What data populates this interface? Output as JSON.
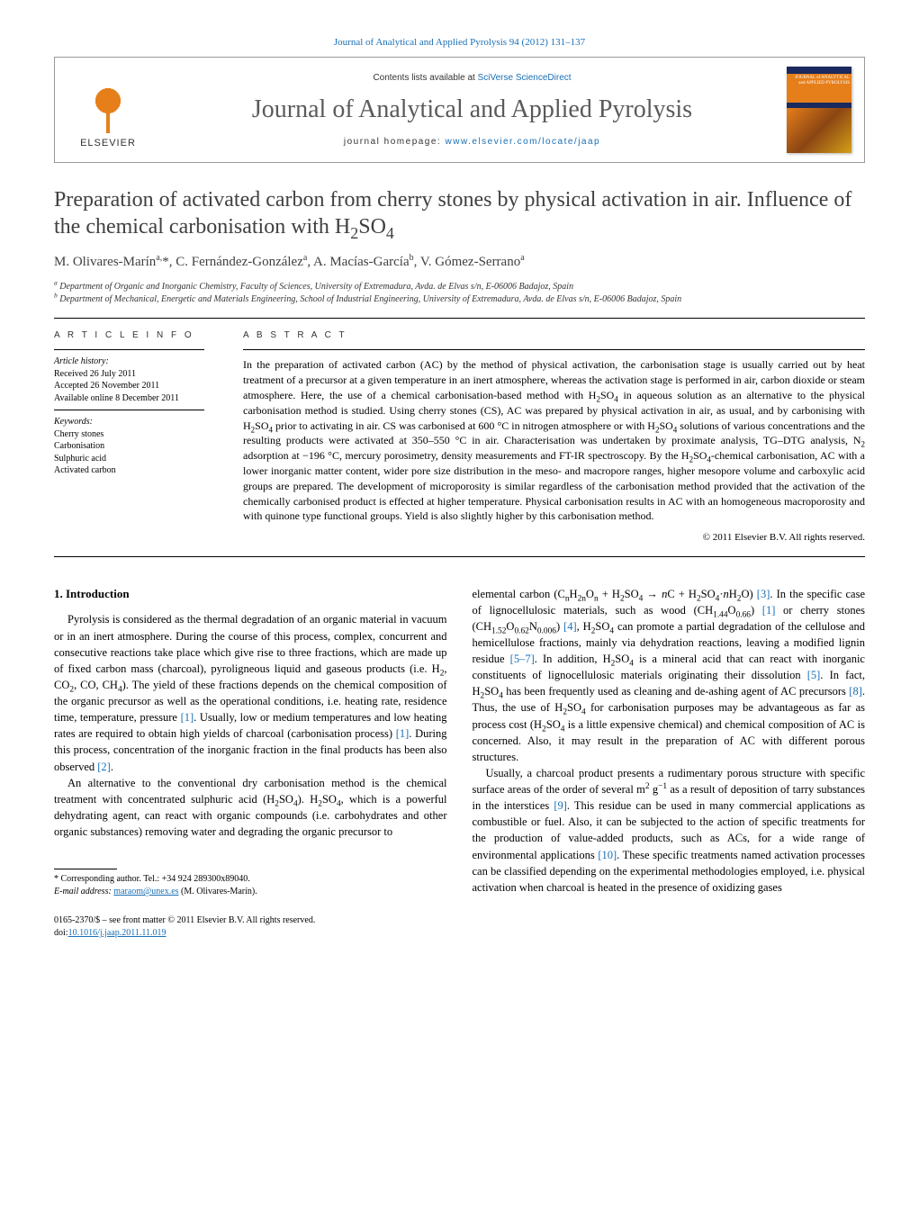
{
  "top_link": "Journal of Analytical and Applied Pyrolysis 94 (2012) 131–137",
  "header": {
    "publisher": "ELSEVIER",
    "contents_prefix": "Contents lists available at ",
    "contents_link": "SciVerse ScienceDirect",
    "journal_title": "Journal of Analytical and Applied Pyrolysis",
    "homepage_prefix": "journal homepage: ",
    "homepage_link": "www.elsevier.com/locate/jaap",
    "cover_label": "JOURNAL of ANALYTICAL and APPLIED PYROLYSIS"
  },
  "article": {
    "title_html": "Preparation of activated carbon from cherry stones by physical activation in air. Influence of the chemical carbonisation with H<sub>2</sub>SO<sub>4</sub>",
    "authors_html": "M. Olivares-Marín<sup>a,</sup>*, C. Fernández-González<sup>a</sup>, A. Macías-García<sup>b</sup>, V. Gómez-Serrano<sup>a</sup>",
    "affiliations": [
      "a Department of Organic and Inorganic Chemistry, Faculty of Sciences, University of Extremadura, Avda. de Elvas s/n, E-06006 Badajoz, Spain",
      "b Department of Mechanical, Energetic and Materials Engineering, School of Industrial Engineering, University of Extremadura, Avda. de Elvas s/n, E-06006 Badajoz, Spain"
    ]
  },
  "info": {
    "heading": "A R T I C L E   I N F O",
    "history_label": "Article history:",
    "received": "Received 26 July 2011",
    "accepted": "Accepted 26 November 2011",
    "available": "Available online 8 December 2011",
    "keywords_label": "Keywords:",
    "keywords": [
      "Cherry stones",
      "Carbonisation",
      "Sulphuric acid",
      "Activated carbon"
    ]
  },
  "abstract": {
    "heading": "A B S T R A C T",
    "text_html": "In the preparation of activated carbon (AC) by the method of physical activation, the carbonisation stage is usually carried out by heat treatment of a precursor at a given temperature in an inert atmosphere, whereas the activation stage is performed in air, carbon dioxide or steam atmosphere. Here, the use of a chemical carbonisation-based method with H<sub>2</sub>SO<sub>4</sub> in aqueous solution as an alternative to the physical carbonisation method is studied. Using cherry stones (CS), AC was prepared by physical activation in air, as usual, and by carbonising with H<sub>2</sub>SO<sub>4</sub> prior to activating in air. CS was carbonised at 600 °C in nitrogen atmosphere or with H<sub>2</sub>SO<sub>4</sub> solutions of various concentrations and the resulting products were activated at 350–550 °C in air. Characterisation was undertaken by proximate analysis, TG–DTG analysis, N<sub>2</sub> adsorption at −196 °C, mercury porosimetry, density measurements and FT-IR spectroscopy. By the H<sub>2</sub>SO<sub>4</sub>-chemical carbonisation, AC with a lower inorganic matter content, wider pore size distribution in the meso- and macropore ranges, higher mesopore volume and carboxylic acid groups are prepared. The development of microporosity is similar regardless of the carbonisation method provided that the activation of the chemically carbonised product is effected at higher temperature. Physical carbonisation results in AC with an homogeneous macroporosity and with quinone type functional groups. Yield is also slightly higher by this carbonisation method.",
    "copyright": "© 2011 Elsevier B.V. All rights reserved."
  },
  "intro": {
    "heading": "1.  Introduction",
    "col1": {
      "p1_html": "Pyrolysis is considered as the thermal degradation of an organic material in vacuum or in an inert atmosphere. During the course of this process, complex, concurrent and consecutive reactions take place which give rise to three fractions, which are made up of fixed carbon mass (charcoal), pyroligneous liquid and gaseous products (i.e. H<sub>2</sub>, CO<sub>2</sub>, CO, CH<sub>4</sub>). The yield of these fractions depends on the chemical composition of the organic precursor as well as the operational conditions, i.e. heating rate, residence time, temperature, pressure <span class=\"ref-link\">[1]</span>. Usually, low or medium temperatures and low heating rates are required to obtain high yields of charcoal (carbonisation process) <span class=\"ref-link\">[1]</span>. During this process, concentration of the inorganic fraction in the final products has been also observed <span class=\"ref-link\">[2]</span>.",
      "p2_html": "An alternative to the conventional dry carbonisation method is the chemical treatment with concentrated sulphuric acid (H<sub>2</sub>SO<sub>4</sub>). H<sub>2</sub>SO<sub>4</sub>, which is a powerful dehydrating agent, can react with organic compounds (i.e. carbohydrates and other organic substances) removing water and degrading the organic precursor to"
    },
    "col2": {
      "p1_html": "elemental carbon (C<sub>n</sub>H<sub>2n</sub>O<sub>n</sub> + H<sub>2</sub>SO<sub>4</sub> → <i>n</i>C + H<sub>2</sub>SO<sub>4</sub>·<i>n</i>H<sub>2</sub>O) <span class=\"ref-link\">[3]</span>. In the specific case of lignocellulosic materials, such as wood (CH<sub>1.44</sub>O<sub>0.66</sub>) <span class=\"ref-link\">[1]</span> or cherry stones (CH<sub>1.52</sub>O<sub>0.62</sub>N<sub>0.006</sub>) <span class=\"ref-link\">[4]</span>, H<sub>2</sub>SO<sub>4</sub> can promote a partial degradation of the cellulose and hemicellulose fractions, mainly via dehydration reactions, leaving a modified lignin residue <span class=\"ref-link\">[5–7]</span>. In addition, H<sub>2</sub>SO<sub>4</sub> is a mineral acid that can react with inorganic constituents of lignocellulosic materials originating their dissolution <span class=\"ref-link\">[5]</span>. In fact, H<sub>2</sub>SO<sub>4</sub> has been frequently used as cleaning and de-ashing agent of AC precursors <span class=\"ref-link\">[8]</span>. Thus, the use of H<sub>2</sub>SO<sub>4</sub> for carbonisation purposes may be advantageous as far as process cost (H<sub>2</sub>SO<sub>4</sub> is a little expensive chemical) and chemical composition of AC is concerned. Also, it may result in the preparation of AC with different porous structures.",
      "p2_html": "Usually, a charcoal product presents a rudimentary porous structure with specific surface areas of the order of several m<sup>2</sup> g<sup>−1</sup> as a result of deposition of tarry substances in the interstices <span class=\"ref-link\">[9]</span>. This residue can be used in many commercial applications as combustible or fuel. Also, it can be subjected to the action of specific treatments for the production of value-added products, such as ACs, for a wide range of environmental applications <span class=\"ref-link\">[10]</span>. These specific treatments named activation processes can be classified depending on the experimental methodologies employed, i.e. physical activation when charcoal is heated in the presence of oxidizing gases"
    }
  },
  "corr": {
    "line1": "* Corresponding author. Tel.: +34 924 289300x89040.",
    "email_label": "E-mail address: ",
    "email": "maraom@unex.es",
    "email_suffix": " (M. Olivares-Marín)."
  },
  "footer": {
    "line1": "0165-2370/$ – see front matter © 2011 Elsevier B.V. All rights reserved.",
    "doi_prefix": "doi:",
    "doi": "10.1016/j.jaap.2011.11.019"
  },
  "colors": {
    "link": "#1a6fb5",
    "publisher_orange": "#e67f1a",
    "cover_blue": "#1a2a5e",
    "text_grey": "#404040"
  }
}
